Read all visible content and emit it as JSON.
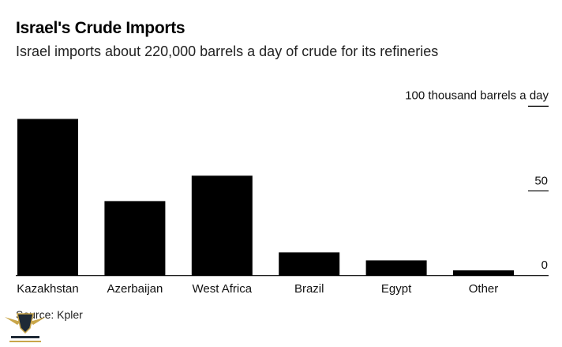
{
  "chart_data": {
    "type": "bar",
    "title": "Israel's Crude Imports",
    "subtitle": "Israel imports about 220,000 barrels a day of crude for its refineries",
    "unit_label": "100 thousand barrels a day",
    "categories": [
      "Kazakhstan",
      "Azerbaijan",
      "West Africa",
      "Brazil",
      "Egypt",
      "Other"
    ],
    "values": [
      92.5,
      44,
      59,
      13.7,
      9,
      3.1
    ],
    "ylim": [
      0,
      100
    ],
    "yticks": [
      0,
      50,
      100
    ],
    "ytick_labels": [
      "0",
      "50"
    ],
    "grid": false,
    "bar_color": "#000000",
    "source": "Source: Kpler"
  }
}
